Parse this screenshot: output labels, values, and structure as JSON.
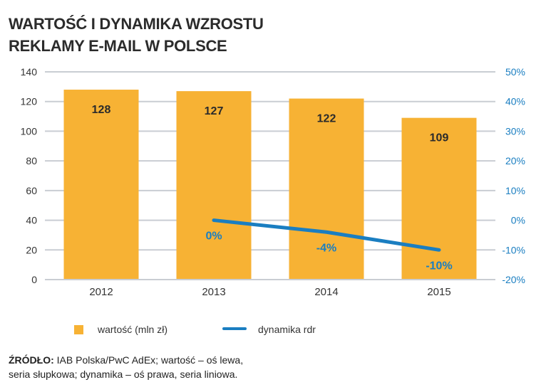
{
  "title_lines": [
    "WARTOŚĆ I DYNAMIKA WZROSTU",
    "REKLAMY E-MAIL W POLSCE"
  ],
  "chart_data": {
    "type": "bar",
    "categories": [
      "2012",
      "2013",
      "2014",
      "2015"
    ],
    "series": [
      {
        "name": "wartość (mln zł)",
        "kind": "bar",
        "axis": "left",
        "values": [
          128,
          127,
          122,
          109
        ],
        "labels": [
          "128",
          "127",
          "122",
          "109"
        ],
        "color": "#F7B234"
      },
      {
        "name": "dynamika rdr",
        "kind": "line",
        "axis": "right",
        "values": [
          null,
          0,
          -4,
          -10
        ],
        "labels": [
          "",
          "0%",
          "-4%",
          "-10%"
        ],
        "color": "#1A7EC1"
      }
    ],
    "left_axis": {
      "range": [
        0,
        140
      ],
      "ticks": [
        "0",
        "20",
        "40",
        "60",
        "80",
        "100",
        "120",
        "140"
      ]
    },
    "right_axis": {
      "range": [
        -20,
        50
      ],
      "ticks": [
        "-20%",
        "-10%",
        "0%",
        "10%",
        "20%",
        "30%",
        "40%",
        "50%"
      ],
      "color": "#1A7EC1"
    },
    "grid": true,
    "legend_placement": "bottom"
  },
  "source": {
    "label": "ŹRÓDŁO:",
    "text_line1": " IAB Polska/PwC AdEx; wartość – oś lewa,",
    "text_line2": "seria słupkowa; dynamika – oś prawa, seria liniowa."
  }
}
